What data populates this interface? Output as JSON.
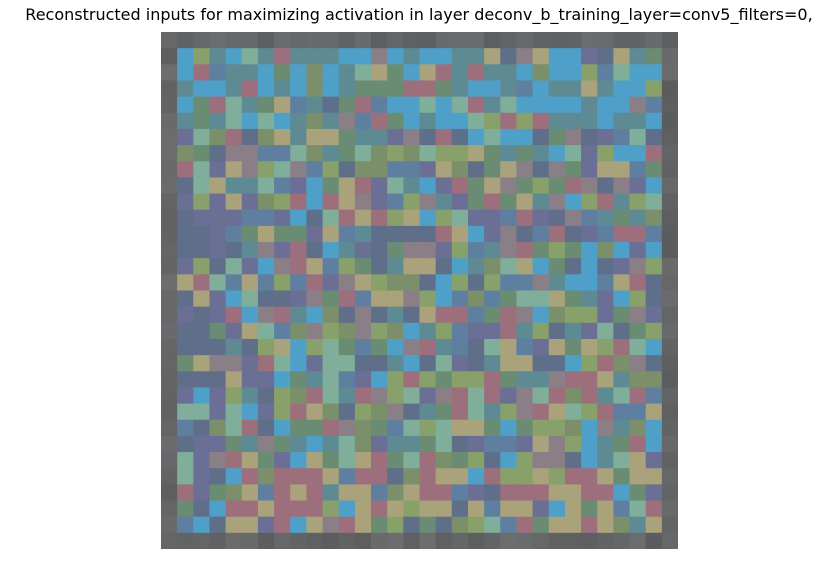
{
  "figure": {
    "title": "Reconstructed inputs for maximizing activation in layer deconv_b_training_layer=conv5_filters=0,"
  },
  "image": {
    "description": "32x32 pixelated reconstructed input image",
    "grid_size": 32,
    "border_color": "#666666",
    "palette": [
      "#5f6f8a",
      "#5e8a94",
      "#4fa0c8",
      "#6a8c72",
      "#7a8f6a",
      "#8a7f86",
      "#5f7fa0",
      "#a9a27a",
      "#9d6f7d",
      "#7fae9a",
      "#6b6f96",
      "#88a06a"
    ]
  }
}
